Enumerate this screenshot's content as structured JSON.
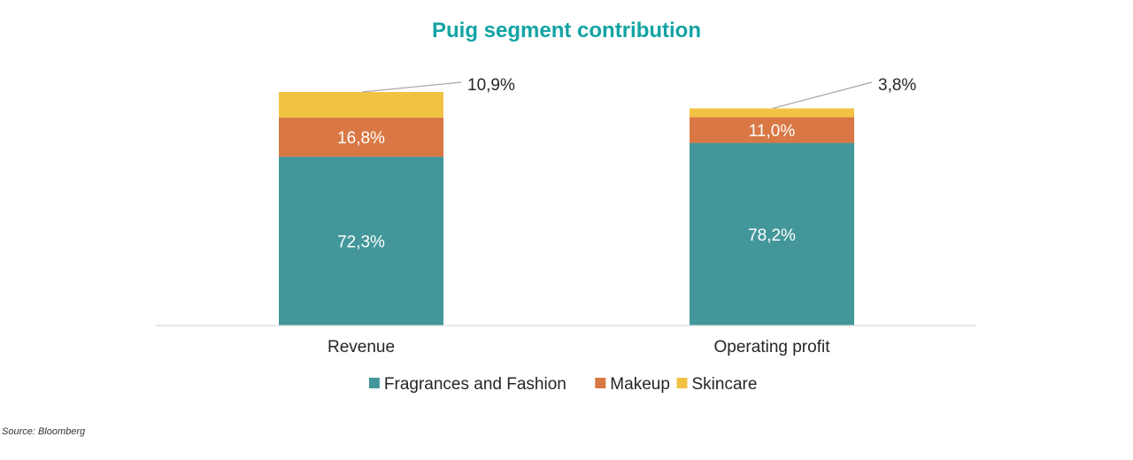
{
  "chart_data": {
    "type": "bar",
    "stacked": true,
    "title": "Puig segment contribution",
    "categories": [
      "Revenue",
      "Operating profit"
    ],
    "series": [
      {
        "name": "Fragrances and Fashion",
        "values": [
          72.3,
          78.2
        ],
        "labels": [
          "72,3%",
          "78,2%"
        ],
        "color": "#43979a",
        "label_position": "inside"
      },
      {
        "name": "Makeup",
        "values": [
          16.8,
          11.0
        ],
        "labels": [
          "16,8%",
          "11,0%"
        ],
        "color": "#d97844",
        "label_position": "inside"
      },
      {
        "name": "Skincare",
        "values": [
          10.9,
          3.8
        ],
        "labels": [
          "10,9%",
          "3,8%"
        ],
        "color": "#f2c343",
        "label_position": "callout"
      }
    ],
    "ylim": [
      0,
      100
    ],
    "grid": false,
    "legend": "bottom",
    "xlabel": "",
    "ylabel": ""
  },
  "source": "Source: Bloomberg",
  "colors": {
    "title": "#14a3a3",
    "axis": "#d9d9d9",
    "leader": "#a6a6a6"
  }
}
